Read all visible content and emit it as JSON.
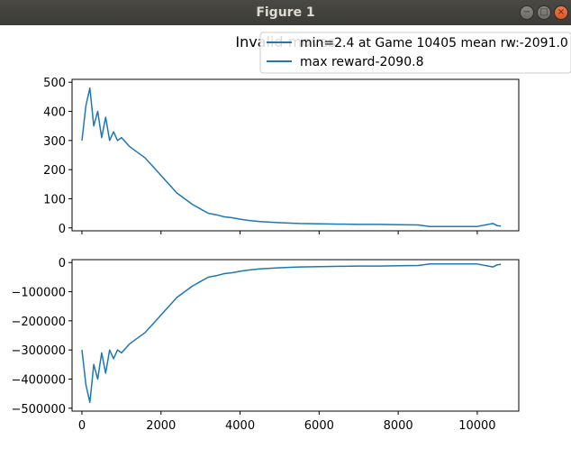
{
  "window": {
    "title": "Figure 1",
    "minimize_icon": "minimize-icon",
    "maximize_icon": "maximize-icon",
    "close_icon": "close-icon",
    "minimize_glyph": "−",
    "maximize_glyph": "□",
    "close_glyph": "×"
  },
  "colors": {
    "series": "#1f77b4",
    "axes": "#000000",
    "background": "#ffffff"
  },
  "chart_data": [
    {
      "type": "line",
      "title": "Invalid moves",
      "xlabel": "",
      "ylabel": "",
      "xlim": [
        -250,
        11050
      ],
      "ylim": [
        -10,
        510
      ],
      "xticks": [
        0,
        2000,
        4000,
        6000,
        8000,
        10000
      ],
      "xtick_labels_shown": false,
      "yticks": [
        0,
        100,
        200,
        300,
        400,
        500
      ],
      "ytick_labels": [
        "0",
        "100",
        "200",
        "300",
        "400",
        "500"
      ],
      "grid": false,
      "legend": {
        "placement": "top-right",
        "entries": [
          "min=2.4 at Game 10405 mean rw:-2091.0",
          "max reward-2090.8"
        ]
      },
      "series": [
        {
          "x": [
            0,
            100,
            200,
            300,
            400,
            500,
            600,
            700,
            800,
            900,
            1000,
            1200,
            1400,
            1600,
            1800,
            2000,
            2200,
            2400,
            2600,
            2800,
            3000,
            3200,
            3400,
            3600,
            3800,
            4000,
            4200,
            4500,
            5000,
            5500,
            6000,
            6500,
            7000,
            7500,
            8000,
            8500,
            8800,
            9000,
            10000,
            10400,
            10500,
            10600
          ],
          "y": [
            300,
            420,
            480,
            350,
            400,
            310,
            380,
            300,
            330,
            300,
            310,
            280,
            260,
            240,
            210,
            180,
            150,
            120,
            100,
            80,
            65,
            50,
            45,
            38,
            35,
            30,
            26,
            22,
            18,
            15,
            14,
            13,
            12,
            12,
            11,
            10,
            5,
            5,
            5,
            15,
            8,
            6
          ]
        }
      ]
    },
    {
      "type": "line",
      "title": "",
      "xlabel": "",
      "ylabel": "",
      "xlim": [
        -250,
        11050
      ],
      "ylim": [
        -510000,
        10000
      ],
      "xticks": [
        0,
        2000,
        4000,
        6000,
        8000,
        10000
      ],
      "xtick_labels": [
        "0",
        "2000",
        "4000",
        "6000",
        "8000",
        "10000"
      ],
      "yticks": [
        0,
        -100000,
        -200000,
        -300000,
        -400000,
        -500000
      ],
      "ytick_labels": [
        "0",
        "−100000",
        "−200000",
        "−300000",
        "−400000",
        "−500000"
      ],
      "grid": false,
      "series": [
        {
          "x": [
            0,
            100,
            200,
            300,
            400,
            500,
            600,
            700,
            800,
            900,
            1000,
            1200,
            1400,
            1600,
            1800,
            2000,
            2200,
            2400,
            2600,
            2800,
            3000,
            3200,
            3400,
            3600,
            3800,
            4000,
            4200,
            4500,
            5000,
            5500,
            6000,
            6500,
            7000,
            7500,
            8000,
            8500,
            8800,
            9000,
            10000,
            10400,
            10500,
            10600
          ],
          "y": [
            -300000,
            -420000,
            -480000,
            -350000,
            -400000,
            -310000,
            -380000,
            -300000,
            -330000,
            -300000,
            -310000,
            -280000,
            -260000,
            -240000,
            -210000,
            -180000,
            -150000,
            -120000,
            -100000,
            -80000,
            -65000,
            -50000,
            -45000,
            -38000,
            -35000,
            -30000,
            -26000,
            -22000,
            -18000,
            -15000,
            -14000,
            -13000,
            -12000,
            -12000,
            -11000,
            -10000,
            -5000,
            -5000,
            -5000,
            -15000,
            -8000,
            -6000
          ]
        }
      ]
    }
  ]
}
